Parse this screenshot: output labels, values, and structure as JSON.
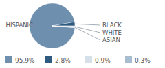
{
  "chart_data": {
    "type": "pie",
    "categories": [
      "HISPANIC",
      "BLACK",
      "WHITE",
      "ASIAN"
    ],
    "values": [
      95.9,
      2.8,
      0.9,
      0.3
    ],
    "value_labels": [
      "95.9%",
      "2.8%",
      "0.9%",
      "0.3%"
    ],
    "colors": [
      "#6f8fae",
      "#2e5a80",
      "#d6e0e9",
      "#a9bdd0"
    ],
    "data_labels": true
  }
}
